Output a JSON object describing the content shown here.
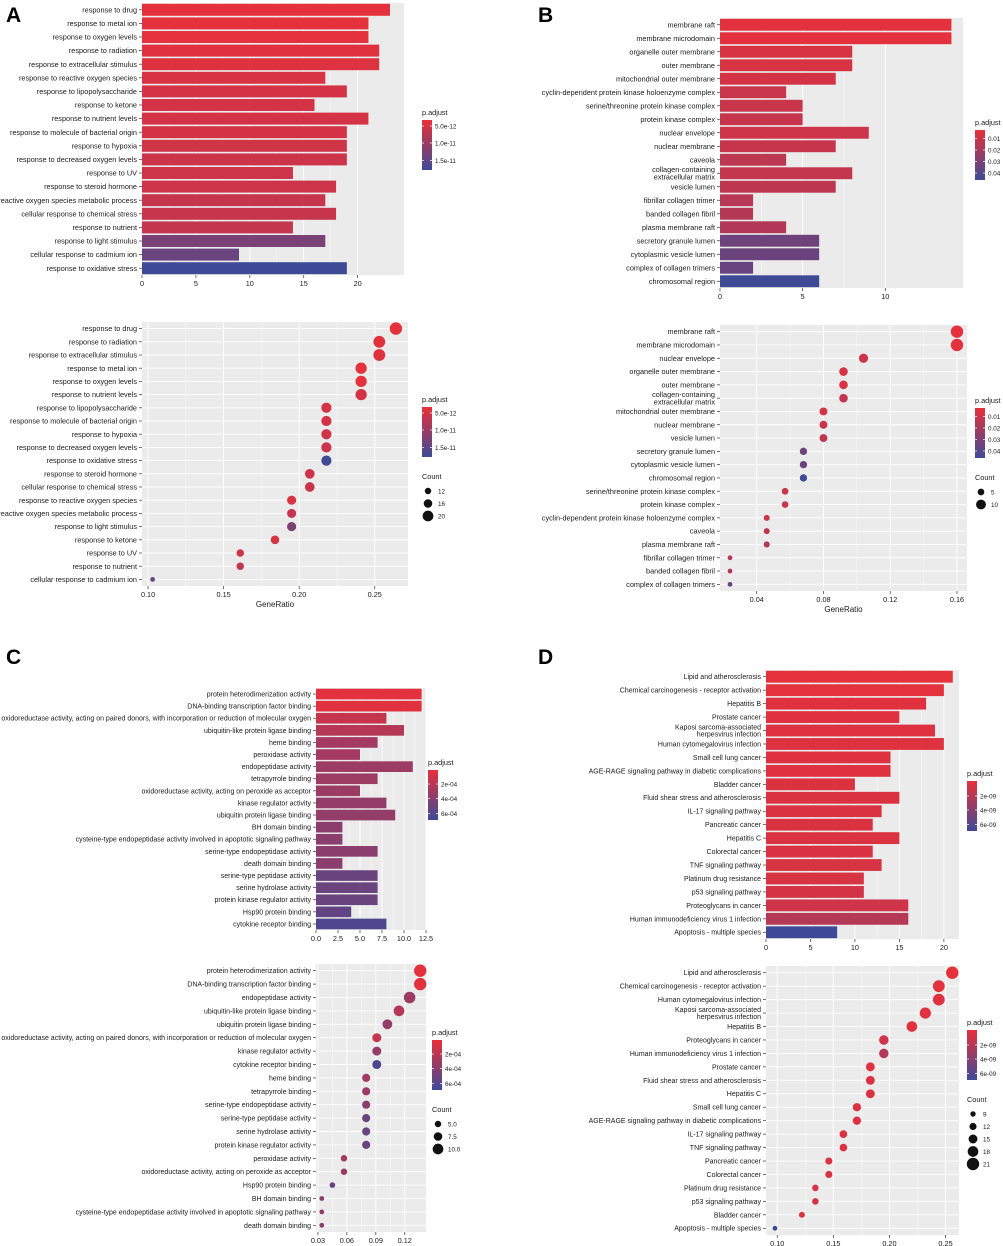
{
  "figure": {
    "panel_labels": [
      "A",
      "B",
      "C",
      "D"
    ]
  },
  "colors": {
    "panel_bg": "#ebebeb",
    "grid": "#ffffff",
    "low_padj": "#e8303a",
    "high_padj": "#3e4a96"
  },
  "chart_data": [
    {
      "id": "A-bar",
      "panel": "A",
      "type": "bar",
      "orientation": "horizontal",
      "categories": [
        "response to drug",
        "response to metal ion",
        "response to oxygen levels",
        "response to radiation",
        "response to extracellular stimulus",
        "response to reactive oxygen species",
        "response to lipopolysaccharide",
        "response to ketone",
        "response to nutrient levels",
        "response to molecule of bacterial origin",
        "response to hypoxia",
        "response to decreased oxygen levels",
        "response to UV",
        "response to steroid hormone",
        "reactive oxygen species metabolic process",
        "cellular response to chemical stress",
        "response to nutrient",
        "response to light stimulus",
        "cellular response to cadmium ion",
        "response to oxidative stress"
      ],
      "values": [
        23,
        21,
        21,
        22,
        22,
        17,
        19,
        16,
        21,
        19,
        19,
        19,
        14,
        18,
        17,
        18,
        14,
        17,
        9,
        19
      ],
      "color_values": [
        0.02,
        0.02,
        0.03,
        0.05,
        0.06,
        0.1,
        0.12,
        0.12,
        0.12,
        0.12,
        0.14,
        0.16,
        0.16,
        0.16,
        0.2,
        0.2,
        0.22,
        0.65,
        0.75,
        1.0
      ],
      "xlim": [
        0,
        24.3
      ],
      "xticks": [
        0,
        5,
        10,
        15,
        20
      ],
      "xlabel": "",
      "legend": {
        "title": "p.adjust",
        "labels": [
          "5.0e-12",
          "1.0e-11",
          "1.5e-11"
        ],
        "label_pos": [
          0.12,
          0.46,
          0.81
        ]
      }
    },
    {
      "id": "A-dot",
      "panel": "A",
      "type": "scatter",
      "categories": [
        "response to drug",
        "response to radiation",
        "response to extracellular stimulus",
        "response to metal ion",
        "response to oxygen levels",
        "response to nutrient levels",
        "response to lipopolysaccharide",
        "response to molecule of bacterial origin",
        "response to hypoxia",
        "response to decreased oxygen levels",
        "response to oxidative stress",
        "response to steroid hormone",
        "cellular response to chemical stress",
        "response to reactive oxygen species",
        "reactive oxygen species metabolic process",
        "response to light stimulus",
        "response to ketone",
        "response to UV",
        "response to nutrient",
        "cellular response to cadmium ion"
      ],
      "x": [
        0.264,
        0.253,
        0.253,
        0.241,
        0.241,
        0.241,
        0.218,
        0.218,
        0.218,
        0.218,
        0.218,
        0.207,
        0.207,
        0.195,
        0.195,
        0.195,
        0.184,
        0.161,
        0.161,
        0.103
      ],
      "counts": [
        23,
        22,
        22,
        21,
        21,
        21,
        19,
        19,
        19,
        19,
        19,
        18,
        18,
        17,
        17,
        17,
        16,
        14,
        14,
        9
      ],
      "color_values": [
        0.02,
        0.05,
        0.06,
        0.02,
        0.03,
        0.12,
        0.12,
        0.12,
        0.14,
        0.16,
        1.0,
        0.16,
        0.2,
        0.1,
        0.2,
        0.65,
        0.12,
        0.16,
        0.22,
        0.75
      ],
      "xlim": [
        0.096,
        0.272
      ],
      "xticks": [
        0.1,
        0.15,
        0.2,
        0.25
      ],
      "xtick_labels": [
        "0.10",
        "0.15",
        "0.20",
        "0.25"
      ],
      "xlabel": "GeneRatio",
      "size_range": [
        9,
        23
      ],
      "legend": {
        "title": "p.adjust",
        "labels": [
          "5.0e-12",
          "1.0e-11",
          "1.5e-11"
        ],
        "label_pos": [
          0.12,
          0.46,
          0.81
        ],
        "count_title": "Count",
        "count_values": [
          12,
          16,
          20
        ]
      }
    },
    {
      "id": "B-bar",
      "panel": "B",
      "type": "bar",
      "orientation": "horizontal",
      "categories": [
        "membrane raft",
        "membrane microdomain",
        "organelle outer membrane",
        "outer membrane",
        "mitochondrial outer membrane",
        "cyclin-dependent protein kinase holoenzyme complex",
        "serine/threonine protein kinase complex",
        "protein kinase complex",
        "nuclear envelope",
        "nuclear membrane",
        "caveola",
        "collagen-containing\nextracellular matrix",
        "vesicle lumen",
        "fibrillar collagen trimer",
        "banded collagen fibril",
        "plasma membrane raft",
        "secretory granule lumen",
        "cytoplasmic vesicle lumen",
        "complex of collagen trimers",
        "chromosomal region"
      ],
      "values": [
        14,
        14,
        8,
        8,
        7,
        4,
        5,
        5,
        9,
        7,
        4,
        8,
        7,
        2,
        2,
        4,
        6,
        6,
        2,
        6
      ],
      "color_values": [
        0.03,
        0.03,
        0.1,
        0.1,
        0.12,
        0.18,
        0.18,
        0.2,
        0.16,
        0.2,
        0.25,
        0.22,
        0.25,
        0.28,
        0.3,
        0.32,
        0.72,
        0.74,
        0.76,
        1.0
      ],
      "xlim": [
        0,
        14.7
      ],
      "xticks": [
        0,
        5,
        10
      ],
      "xlabel": "",
      "legend": {
        "title": "p.adjust",
        "labels": [
          "0.01",
          "0.02",
          "0.03",
          "0.04"
        ],
        "label_pos": [
          0.17,
          0.4,
          0.63,
          0.86
        ]
      }
    },
    {
      "id": "B-dot",
      "panel": "B",
      "type": "scatter",
      "categories": [
        "membrane raft",
        "membrane microdomain",
        "nuclear envelope",
        "organelle outer membrane",
        "outer membrane",
        "collagen-containing\nextracellular matrix",
        "mitochondrial outer membrane",
        "nuclear membrane",
        "vesicle lumen",
        "secretory granule lumen",
        "cytoplasmic vesicle lumen",
        "chromosomal region",
        "serine/threonine protein kinase complex",
        "protein kinase complex",
        "cyclin-dependent protein kinase holoenzyme complex",
        "caveola",
        "plasma membrane raft",
        "fibrillar collagen trimer",
        "banded collagen fibril",
        "complex of collagen trimers"
      ],
      "x": [
        0.16,
        0.16,
        0.104,
        0.092,
        0.092,
        0.092,
        0.08,
        0.08,
        0.08,
        0.068,
        0.068,
        0.068,
        0.057,
        0.057,
        0.046,
        0.046,
        0.046,
        0.024,
        0.024,
        0.024
      ],
      "counts": [
        14,
        14,
        9,
        8,
        8,
        8,
        7,
        7,
        7,
        6,
        6,
        6,
        5,
        5,
        4,
        4,
        4,
        2,
        2,
        2
      ],
      "color_values": [
        0.03,
        0.03,
        0.16,
        0.1,
        0.1,
        0.22,
        0.12,
        0.2,
        0.25,
        0.72,
        0.74,
        1.0,
        0.18,
        0.2,
        0.18,
        0.25,
        0.32,
        0.28,
        0.3,
        0.76
      ],
      "xlim": [
        0.018,
        0.166
      ],
      "xticks": [
        0.04,
        0.08,
        0.12,
        0.16
      ],
      "xtick_labels": [
        "0.04",
        "0.08",
        "0.12",
        "0.16"
      ],
      "xlabel": "GeneRatio",
      "size_range": [
        2,
        14
      ],
      "legend": {
        "title": "p.adjust",
        "labels": [
          "0.01",
          "0.02",
          "0.03",
          "0.04"
        ],
        "label_pos": [
          0.17,
          0.4,
          0.63,
          0.86
        ],
        "count_title": "Count",
        "count_values": [
          5,
          10
        ]
      }
    },
    {
      "id": "C-bar",
      "panel": "C",
      "type": "bar",
      "orientation": "horizontal",
      "categories": [
        "protein heterodimerization activity",
        "DNA-binding transcription factor binding",
        "oxidoreductase activity, acting on paired donors, with incorporation or reduction of molecular oxygen",
        "ubiquitin-like protein ligase binding",
        "heme binding",
        "peroxidase activity",
        "endopeptidase activity",
        "tetrapyrrole binding",
        "oxidoreductase activity, acting on peroxide as acceptor",
        "kinase regulator activity",
        "ubiquitin protein ligase binding",
        "BH domain binding",
        "cysteine-type endopeptidase activity involved in apoptotic signaling pathway",
        "serine-type endopeptidase activity",
        "death domain binding",
        "serine-type peptidase activity",
        "serine hydrolase activity",
        "protein kinase regulator activity",
        "Hsp90 protein binding",
        "cytokine receptor binding"
      ],
      "values": [
        12,
        12,
        8,
        10,
        7,
        5,
        11,
        7,
        5,
        8,
        9,
        3,
        3,
        7,
        3,
        7,
        7,
        7,
        4,
        8
      ],
      "color_values": [
        0.03,
        0.04,
        0.2,
        0.3,
        0.4,
        0.4,
        0.45,
        0.45,
        0.45,
        0.5,
        0.5,
        0.55,
        0.55,
        0.55,
        0.55,
        0.75,
        0.75,
        0.75,
        0.78,
        0.9
      ],
      "xlim": [
        0,
        12.5
      ],
      "xticks": [
        0,
        2.5,
        5,
        7.5,
        10,
        12.5
      ],
      "xtick_labels": [
        "0.0",
        "2.5",
        "5.0",
        "7.5",
        "10.0",
        "12.5"
      ],
      "xlabel": "",
      "legend": {
        "title": "p.adjust",
        "labels": [
          "2e-04",
          "4e-04",
          "6e-04"
        ],
        "label_pos": [
          0.28,
          0.57,
          0.87
        ]
      }
    },
    {
      "id": "C-dot",
      "panel": "C",
      "type": "scatter",
      "categories": [
        "protein heterodimerization activity",
        "DNA-binding transcription factor binding",
        "endopeptidase activity",
        "ubiquitin-like protein ligase binding",
        "ubiquitin protein ligase binding",
        "oxidoreductase activity, acting on paired donors, with incorporation or reduction of molecular oxygen",
        "kinase regulator activity",
        "cytokine receptor binding",
        "heme binding",
        "tetrapyrrole binding",
        "serine-type endopeptidase activity",
        "serine-type peptidase activity",
        "serine hydrolase activity",
        "protein kinase regulator activity",
        "peroxidase activity",
        "oxidoreductase activity, acting on peroxide as acceptor",
        "Hsp90 protein binding",
        "BH domain binding",
        "cysteine-type endopeptidase activity involved in apoptotic signaling pathway",
        "death domain binding"
      ],
      "x": [
        0.136,
        0.136,
        0.125,
        0.114,
        0.102,
        0.091,
        0.091,
        0.091,
        0.08,
        0.08,
        0.08,
        0.08,
        0.08,
        0.08,
        0.057,
        0.057,
        0.045,
        0.034,
        0.034,
        0.034
      ],
      "counts": [
        12,
        12,
        11,
        10,
        9,
        8,
        8,
        8,
        7,
        7,
        7,
        7,
        7,
        7,
        5,
        5,
        4,
        3,
        3,
        3
      ],
      "color_values": [
        0.03,
        0.04,
        0.45,
        0.3,
        0.5,
        0.2,
        0.5,
        0.9,
        0.4,
        0.45,
        0.55,
        0.75,
        0.75,
        0.75,
        0.4,
        0.45,
        0.78,
        0.55,
        0.55,
        0.55
      ],
      "xlim": [
        0.028,
        0.142
      ],
      "xticks": [
        0.03,
        0.06,
        0.09,
        0.12
      ],
      "xtick_labels": [
        "0.03",
        "0.06",
        "0.09",
        "0.12"
      ],
      "xlabel": "GeneRatio",
      "size_range": [
        3,
        12
      ],
      "legend": {
        "title": "p.adjust",
        "labels": [
          "2e-04",
          "4e-04",
          "6e-04"
        ],
        "label_pos": [
          0.28,
          0.57,
          0.87
        ],
        "count_title": "Count",
        "count_values": [
          "5.0",
          "7.5",
          "10.0"
        ]
      }
    },
    {
      "id": "D-bar",
      "panel": "D",
      "type": "bar",
      "orientation": "horizontal",
      "categories": [
        "Lipid and atherosclerosis",
        "Chemical carcinogenesis - receptor activation",
        "Hepatitis B",
        "Prostate cancer",
        "Kaposi sarcoma-associated\nherpesvirus infection",
        "Human cytomegalovirus infection",
        "Small cell lung cancer",
        "AGE-RAGE signaling pathway in diabetic complications",
        "Bladder cancer",
        "Fluid shear stress and atherosclerosis",
        "IL-17 signaling pathway",
        "Pancreatic cancer",
        "Hepatitis C",
        "Colorectal cancer",
        "TNF signaling pathway",
        "Platinum drug resistance",
        "p53 signaling pathway",
        "Proteoglycans in cancer",
        "Human immunodeficiency virus 1 infection",
        "Apoptosis - multiple species"
      ],
      "values": [
        21,
        20,
        18,
        15,
        19,
        20,
        14,
        14,
        10,
        15,
        13,
        12,
        15,
        12,
        13,
        11,
        11,
        16,
        16,
        8
      ],
      "color_values": [
        0.02,
        0.03,
        0.04,
        0.05,
        0.06,
        0.06,
        0.06,
        0.06,
        0.07,
        0.08,
        0.08,
        0.08,
        0.08,
        0.09,
        0.1,
        0.1,
        0.12,
        0.15,
        0.3,
        1.0
      ],
      "xlim": [
        0,
        21.7
      ],
      "xticks": [
        0,
        5,
        10,
        15,
        20
      ],
      "xlabel": "",
      "legend": {
        "title": "p.adjust",
        "labels": [
          "2e-09",
          "4e-09",
          "6e-09"
        ],
        "label_pos": [
          0.3,
          0.58,
          0.87
        ]
      }
    },
    {
      "id": "D-dot",
      "panel": "D",
      "type": "scatter",
      "categories": [
        "Lipid and atherosclerosis",
        "Chemical carcinogenesis - receptor activation",
        "Human cytomegalovirus infection",
        "Kaposi sarcoma-associated\nherpesvirus infection",
        "Hepatitis B",
        "Proteoglycans in cancer",
        "Human immunodeficiency virus 1 infection",
        "Prostate cancer",
        "Fluid shear stress and atherosclerosis",
        "Hepatitis C",
        "Small cell lung cancer",
        "AGE-RAGE signaling pathway in diabetic complications",
        "IL-17 signaling pathway",
        "TNF signaling pathway",
        "Pancreatic cancer",
        "Colorectal cancer",
        "Platinum drug resistance",
        "p53 signaling pathway",
        "Bladder cancer",
        "Apoptosis - multiple species"
      ],
      "x": [
        0.256,
        0.244,
        0.244,
        0.232,
        0.22,
        0.195,
        0.195,
        0.183,
        0.183,
        0.183,
        0.171,
        0.171,
        0.159,
        0.159,
        0.146,
        0.146,
        0.134,
        0.134,
        0.122,
        0.098
      ],
      "counts": [
        21,
        20,
        20,
        19,
        18,
        16,
        16,
        15,
        15,
        15,
        14,
        14,
        13,
        13,
        12,
        12,
        11,
        11,
        10,
        8
      ],
      "color_values": [
        0.02,
        0.03,
        0.06,
        0.06,
        0.04,
        0.15,
        0.3,
        0.05,
        0.08,
        0.08,
        0.06,
        0.06,
        0.08,
        0.1,
        0.08,
        0.09,
        0.1,
        0.12,
        0.07,
        1.0
      ],
      "xlim": [
        0.09,
        0.262
      ],
      "xticks": [
        0.1,
        0.15,
        0.2,
        0.25
      ],
      "xtick_labels": [
        "0.10",
        "0.15",
        "0.20",
        "0.25"
      ],
      "xlabel": "GeneRatio",
      "size_range": [
        8,
        21
      ],
      "legend": {
        "title": "p.adjust",
        "labels": [
          "2e-09",
          "4e-09",
          "6e-09"
        ],
        "label_pos": [
          0.3,
          0.58,
          0.87
        ],
        "count_title": "Count",
        "count_values": [
          9,
          12,
          15,
          18,
          21
        ]
      }
    }
  ]
}
